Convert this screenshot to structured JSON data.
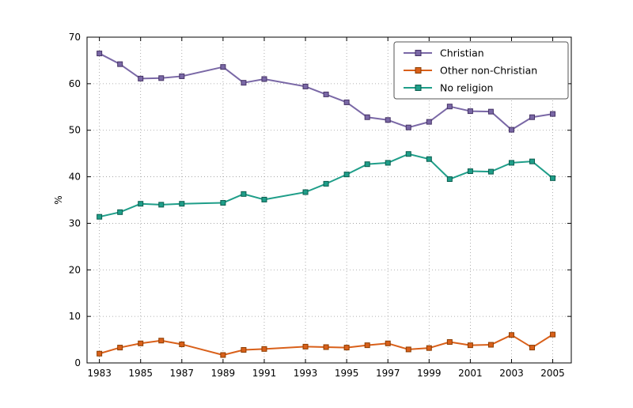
{
  "figure": {
    "background": "#ffffff",
    "frame_color": "#000000",
    "grid_color": "#9a9a9a"
  },
  "chart_data": {
    "type": "line",
    "title": "",
    "xlabel": "",
    "ylabel": "%",
    "ylim": [
      0,
      70
    ],
    "xlim": [
      1982.4,
      2005.9
    ],
    "yticks": [
      0,
      10,
      20,
      30,
      40,
      50,
      60,
      70
    ],
    "xticks": [
      1983,
      1985,
      1987,
      1989,
      1991,
      1993,
      1995,
      1997,
      1999,
      2001,
      2003,
      2005
    ],
    "grid": true,
    "legend_position": "upper right",
    "x": [
      1983,
      1984,
      1985,
      1986,
      1987,
      1989,
      1990,
      1991,
      1993,
      1994,
      1995,
      1996,
      1997,
      1998,
      1999,
      2000,
      2001,
      2002,
      2003,
      2004,
      2005
    ],
    "series": [
      {
        "name": "Christian",
        "color": "#7a68a6",
        "marker_edge": "#463366",
        "values": [
          66.5,
          64.2,
          61.1,
          61.2,
          61.6,
          63.6,
          60.2,
          61.0,
          59.4,
          57.7,
          56.0,
          52.8,
          52.2,
          50.6,
          51.8,
          55.1,
          54.1,
          54.0,
          50.1,
          52.8,
          53.5
        ]
      },
      {
        "name": "Other non-Christian",
        "color": "#d9601a",
        "marker_edge": "#8c3d00",
        "values": [
          2.0,
          3.3,
          4.2,
          4.8,
          4.0,
          1.7,
          2.8,
          3.0,
          3.5,
          3.4,
          3.3,
          3.8,
          4.2,
          2.9,
          3.2,
          4.5,
          3.8,
          3.9,
          6.0,
          3.3,
          6.1
        ]
      },
      {
        "name": "No religion",
        "color": "#1f9e89",
        "marker_edge": "#0b5d4e",
        "values": [
          31.4,
          32.4,
          34.2,
          34.0,
          34.2,
          34.4,
          36.3,
          35.1,
          36.7,
          38.5,
          40.5,
          42.7,
          43.0,
          44.9,
          43.8,
          39.5,
          41.2,
          41.1,
          43.0,
          43.3,
          39.7
        ]
      }
    ]
  }
}
